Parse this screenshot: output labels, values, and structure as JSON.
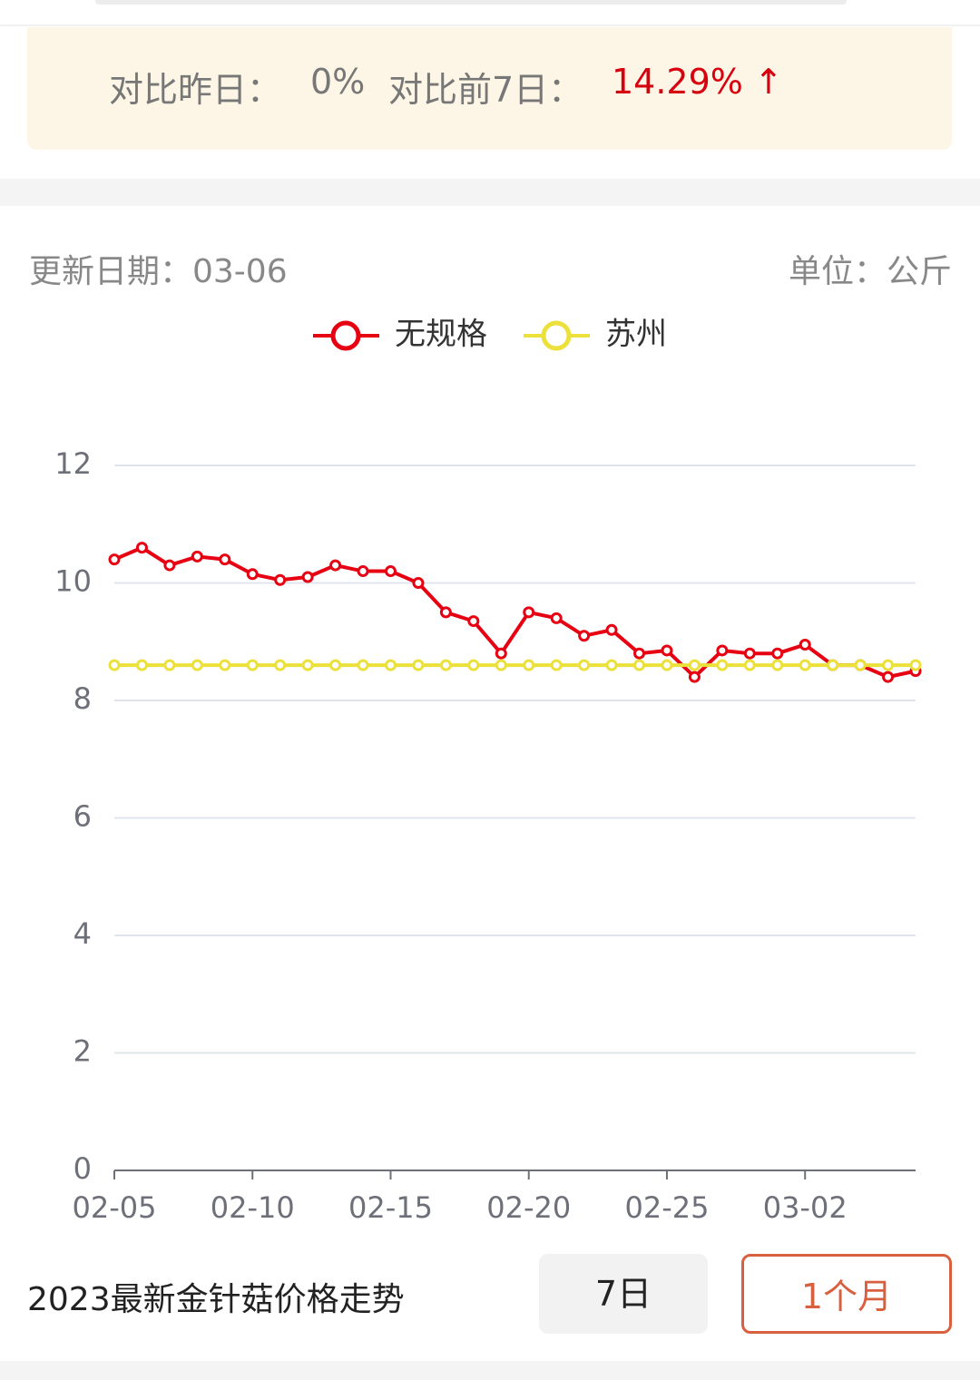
{
  "summary": {
    "vs_yesterday_label": "对比昨日：",
    "vs_yesterday_value": "0%",
    "vs_week_label": "对比前7日：",
    "vs_week_value": "14.29% ↑"
  },
  "info": {
    "update_date": "更新日期：03-06",
    "unit": "单位：公斤"
  },
  "chart_data": {
    "type": "line",
    "categories": [
      "02-05",
      null,
      null,
      null,
      null,
      "02-10",
      null,
      null,
      null,
      null,
      "02-15",
      null,
      null,
      null,
      null,
      "02-20",
      null,
      null,
      null,
      null,
      "02-25",
      null,
      null,
      null,
      null,
      "03-02",
      null,
      null,
      null,
      null
    ],
    "series": [
      {
        "name": "无规格",
        "color": "#e60012",
        "values": [
          10.4,
          10.6,
          10.3,
          10.45,
          10.4,
          10.15,
          10.05,
          10.1,
          10.3,
          10.2,
          10.2,
          10.0,
          9.5,
          9.35,
          8.8,
          9.5,
          9.4,
          9.1,
          9.2,
          8.8,
          8.85,
          8.4,
          8.85,
          8.8,
          8.8,
          8.95,
          8.6,
          8.6,
          8.4,
          8.5
        ]
      },
      {
        "name": "苏州",
        "color": "#ece03a",
        "values": [
          8.6,
          8.6,
          8.6,
          8.6,
          8.6,
          8.6,
          8.6,
          8.6,
          8.6,
          8.6,
          8.6,
          8.6,
          8.6,
          8.6,
          8.6,
          8.6,
          8.6,
          8.6,
          8.6,
          8.6,
          8.6,
          8.6,
          8.6,
          8.6,
          8.6,
          8.6,
          8.6,
          8.6,
          8.6,
          8.6
        ]
      }
    ],
    "ylim": [
      0,
      12
    ],
    "yticks": [
      0,
      2,
      4,
      6,
      8,
      10,
      12
    ],
    "grid": true
  },
  "footer": {
    "title": "2023最新金针菇价格走势",
    "buttons": [
      "7日",
      "1个月"
    ]
  }
}
